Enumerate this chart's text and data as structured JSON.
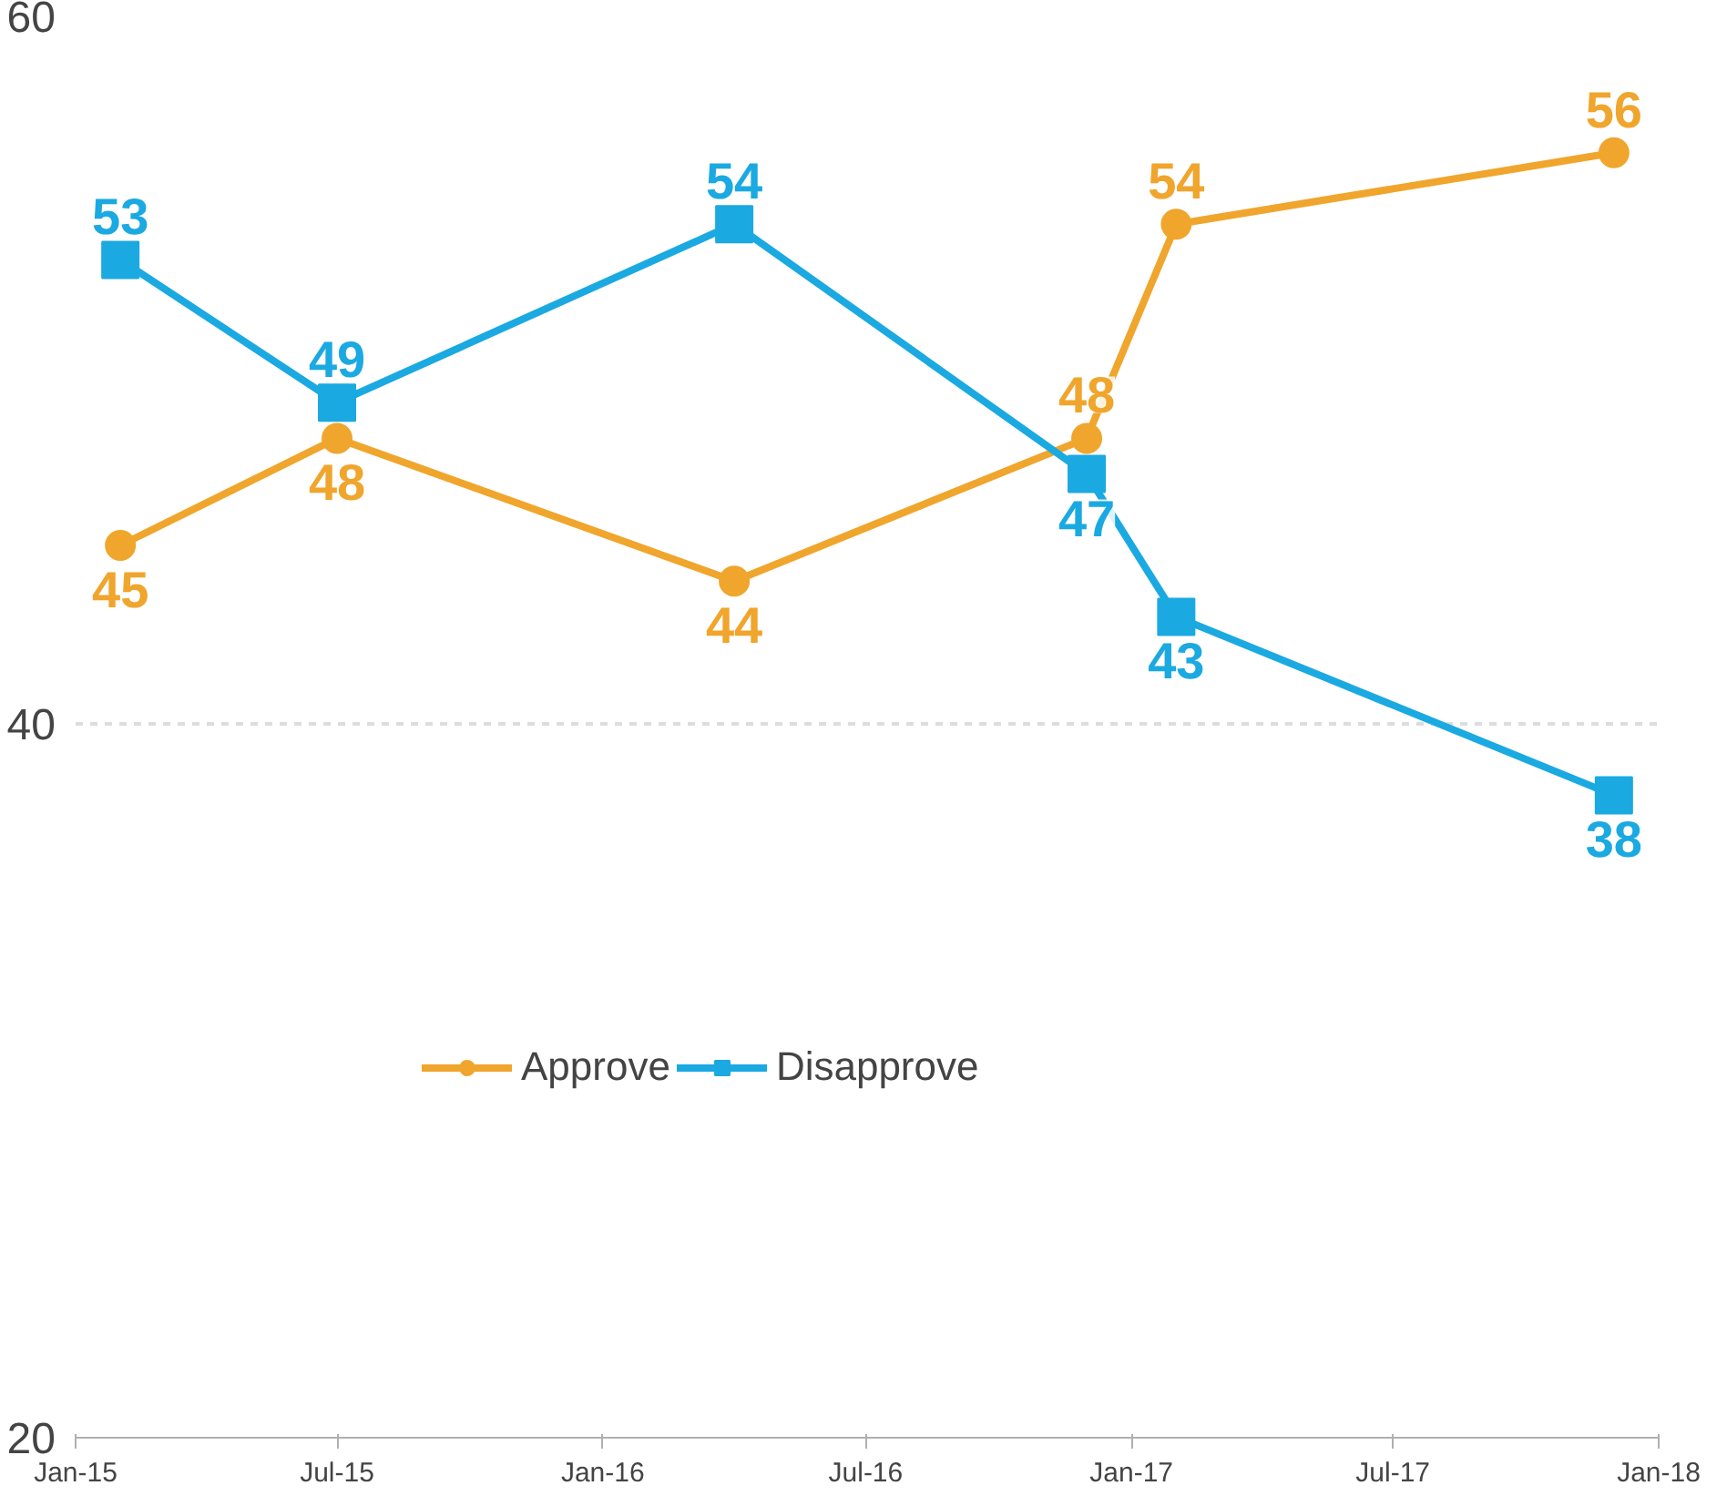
{
  "chart_data": {
    "type": "line",
    "x": [
      "2015-02",
      "2015-07",
      "2016-04",
      "2016-12",
      "2017-02",
      "2017-12"
    ],
    "series": [
      {
        "name": "Approve",
        "color": "#f0a52c",
        "marker": "circle",
        "values": [
          45,
          48,
          44,
          48,
          54,
          56
        ]
      },
      {
        "name": "Disapprove",
        "color": "#1ba9e1",
        "marker": "square",
        "values": [
          53,
          49,
          54,
          47,
          43,
          38
        ]
      }
    ],
    "xlim": [
      "2015-01",
      "2018-01"
    ],
    "xticks": [
      {
        "value": "2015-01",
        "label": "Jan-15"
      },
      {
        "value": "2015-07",
        "label": "Jul-15"
      },
      {
        "value": "2016-01",
        "label": "Jan-16"
      },
      {
        "value": "2016-07",
        "label": "Jul-16"
      },
      {
        "value": "2017-01",
        "label": "Jan-17"
      },
      {
        "value": "2017-07",
        "label": "Jul-17"
      },
      {
        "value": "2018-01",
        "label": "Jan-18"
      }
    ],
    "ylim": [
      20,
      60
    ],
    "yticks": [
      20,
      40,
      60
    ],
    "grid": "y",
    "legend": "bottom left",
    "data_labels": true,
    "line_style": "solid"
  }
}
